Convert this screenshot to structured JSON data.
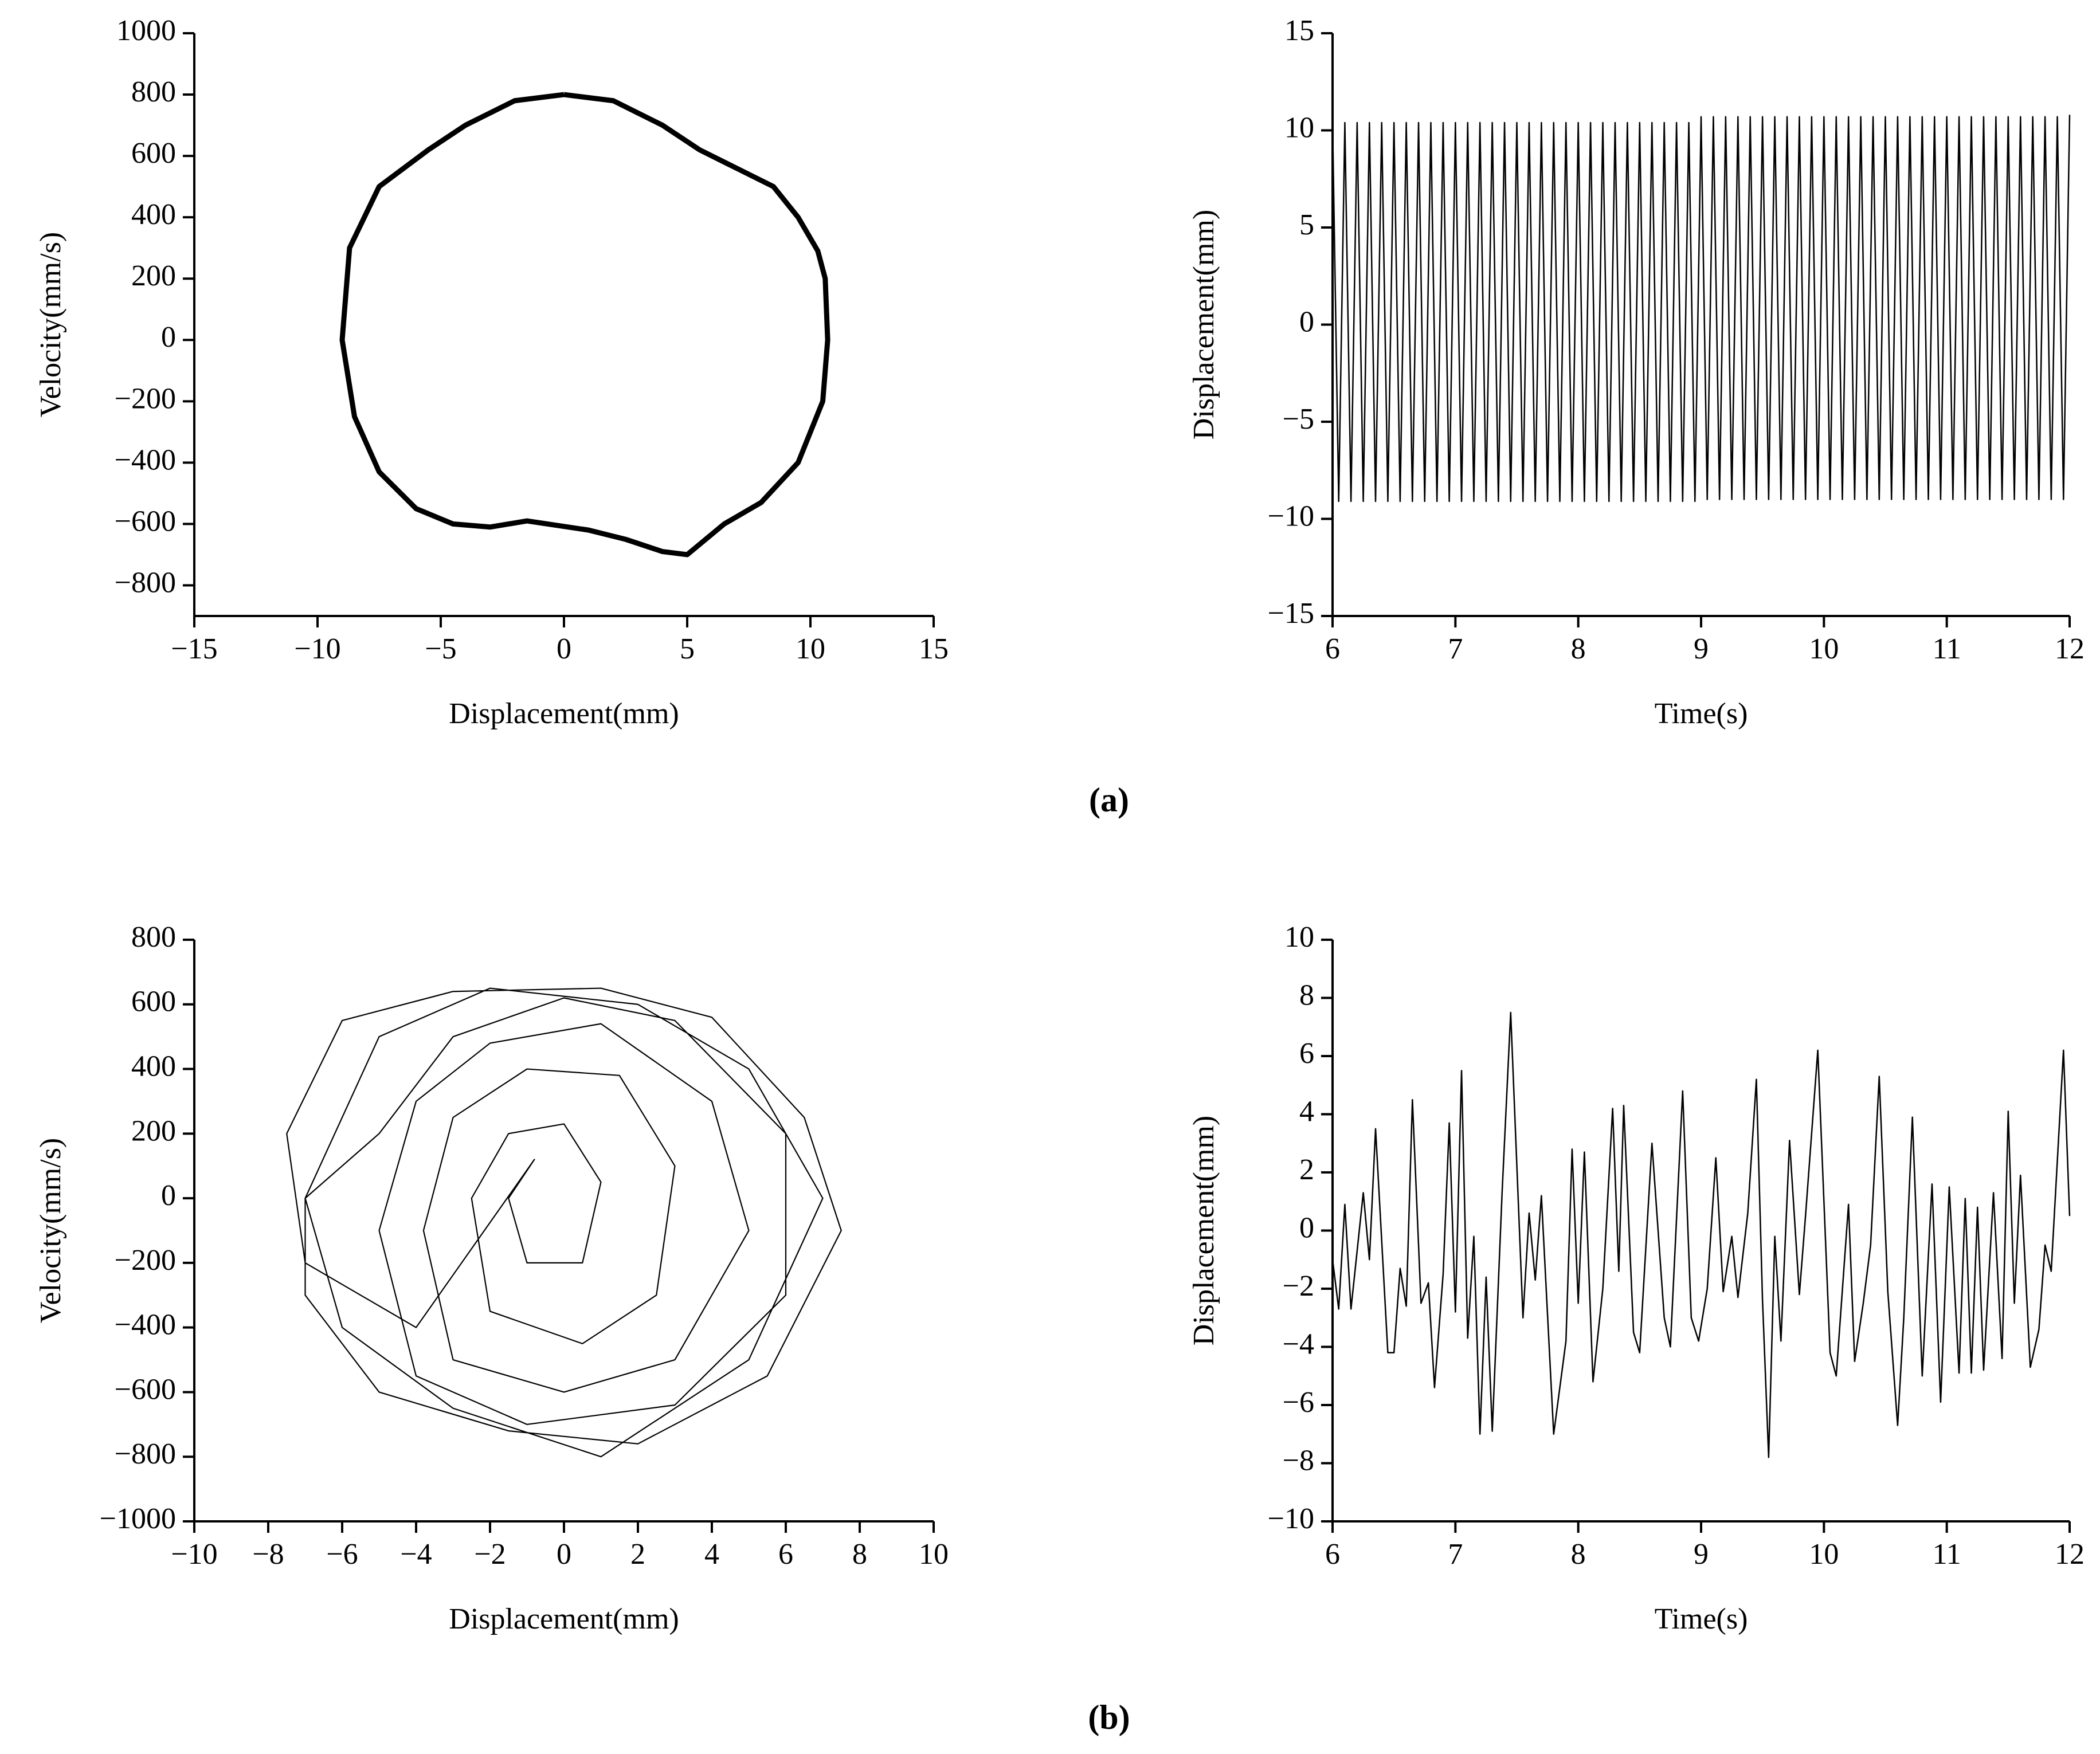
{
  "chart_data": [
    {
      "type": "line",
      "xlabel": "Displacement(mm)",
      "ylabel": "Velocity(mm/s)",
      "color": "#000000",
      "x": [
        0,
        2,
        4,
        5.5,
        7,
        8.5,
        9.5,
        10.3,
        10.6,
        10.7,
        10.5,
        9.5,
        8,
        6.5,
        5,
        4,
        2.5,
        1,
        -1.5,
        -3,
        -4.5,
        -6,
        -7.5,
        -8.5,
        -9,
        -8.7,
        -7.5,
        -5.5,
        -4,
        -2,
        0
      ],
      "values": [
        800,
        780,
        700,
        620,
        560,
        500,
        400,
        290,
        200,
        0,
        -200,
        -400,
        -530,
        -600,
        -700,
        -690,
        -650,
        -620,
        -590,
        -610,
        -600,
        -550,
        -430,
        -250,
        0,
        300,
        500,
        620,
        700,
        780,
        800
      ],
      "xlim": [
        -15,
        15
      ],
      "xticks": [
        {
          "value": -15,
          "label": "−15"
        },
        {
          "value": -10,
          "label": "−10"
        },
        {
          "value": -5,
          "label": "−5"
        },
        0,
        5,
        10,
        15
      ],
      "ylim": [
        -900,
        1000
      ],
      "yticks": [
        {
          "value": -800,
          "label": "−800"
        },
        {
          "value": -600,
          "label": "−600"
        },
        {
          "value": -400,
          "label": "−400"
        },
        {
          "value": -200,
          "label": "−200"
        },
        0,
        200,
        400,
        600,
        800,
        1000
      ]
    },
    {
      "type": "line",
      "xlabel": "Time(s)",
      "ylabel": "Displacement(mm)",
      "color": "#000000",
      "x": [
        6,
        6.05,
        6.1,
        6.15,
        6.2,
        6.25,
        6.3,
        6.35,
        6.4,
        6.45,
        6.5,
        6.55,
        6.6,
        6.65,
        6.7,
        6.75,
        6.8,
        6.85,
        6.9,
        6.95,
        7,
        7.05,
        7.1,
        7.15,
        7.2,
        7.25,
        7.3,
        7.35,
        7.4,
        7.45,
        7.5,
        7.55,
        7.6,
        7.65,
        7.7,
        7.75,
        7.8,
        7.85,
        7.9,
        7.95,
        8,
        8.05,
        8.1,
        8.15,
        8.2,
        8.25,
        8.3,
        8.35,
        8.4,
        8.45,
        8.5,
        8.55,
        8.6,
        8.65,
        8.7,
        8.75,
        8.8,
        8.85,
        8.9,
        8.95,
        9,
        9.05,
        9.1,
        9.15,
        9.2,
        9.25,
        9.3,
        9.35,
        9.4,
        9.45,
        9.5,
        9.55,
        9.6,
        9.65,
        9.7,
        9.75,
        9.8,
        9.85,
        9.9,
        9.95,
        10,
        10.05,
        10.1,
        10.15,
        10.2,
        10.25,
        10.3,
        10.35,
        10.4,
        10.45,
        10.5,
        10.55,
        10.6,
        10.65,
        10.7,
        10.75,
        10.8,
        10.85,
        10.9,
        10.95,
        11,
        11.05,
        11.1,
        11.15,
        11.2,
        11.25,
        11.3,
        11.35,
        11.4,
        11.45,
        11.5,
        11.55,
        11.6,
        11.65,
        11.7,
        11.75,
        11.8,
        11.85,
        11.9,
        11.95,
        12
      ],
      "values": [
        10.4,
        -9.1,
        10.4,
        -9.1,
        10.4,
        -9.1,
        10.4,
        -9.1,
        10.4,
        -9.1,
        10.4,
        -9.1,
        10.4,
        -9.1,
        10.4,
        -9.1,
        10.4,
        -9.1,
        10.4,
        -9.1,
        10.4,
        -9.1,
        10.4,
        -9.1,
        10.4,
        -9.1,
        10.4,
        -9.1,
        10.4,
        -9.1,
        10.4,
        -9.1,
        10.4,
        -9.1,
        10.4,
        -9.1,
        10.4,
        -9.1,
        10.4,
        -9.1,
        10.4,
        -9.1,
        10.4,
        -9.1,
        10.4,
        -9.1,
        10.4,
        -9.1,
        10.4,
        -9.1,
        10.4,
        -9.1,
        10.4,
        -9.1,
        10.4,
        -9.1,
        10.4,
        -9.1,
        10.4,
        -9.1,
        10.7,
        -9.0,
        10.7,
        -9.0,
        10.7,
        -9.0,
        10.7,
        -9.0,
        10.7,
        -9.0,
        10.7,
        -9.0,
        10.7,
        -9.0,
        10.7,
        -9.0,
        10.7,
        -9.0,
        10.7,
        -9.0,
        10.7,
        -9.0,
        10.7,
        -9.0,
        10.7,
        -9.0,
        10.7,
        -9.0,
        10.7,
        -9.0,
        10.7,
        -9.0,
        10.7,
        -9.0,
        10.7,
        -9.0,
        10.7,
        -9.0,
        10.7,
        -9.0,
        10.7,
        -9.0,
        10.7,
        -9.0,
        10.7,
        -9.0,
        10.7,
        -9.0,
        10.7,
        -9.0,
        10.7,
        -9.0,
        10.7,
        -9.0,
        10.7,
        -9.0,
        10.7,
        -9.0,
        10.7,
        -9.0,
        10.8
      ],
      "xlim": [
        6,
        12
      ],
      "xticks": [
        6,
        7,
        8,
        9,
        10,
        11,
        12
      ],
      "ylim": [
        -15,
        15
      ],
      "yticks": [
        {
          "value": -15,
          "label": "−15"
        },
        {
          "value": -10,
          "label": "−10"
        },
        {
          "value": -5,
          "label": "−5"
        },
        0,
        5,
        10,
        15
      ]
    },
    {
      "type": "line",
      "xlabel": "Displacement(mm)",
      "ylabel": "Velocity(mm/s)",
      "color": "#000000",
      "x": [
        -7,
        -5,
        -2,
        2,
        5,
        7,
        5,
        1,
        -3,
        -6,
        -7,
        -5,
        -3,
        0,
        3,
        6,
        6,
        3,
        -1,
        -4,
        -5,
        -4,
        -2,
        1,
        4,
        5,
        3,
        0,
        -3,
        -3.8,
        -3,
        -1,
        1.5,
        3,
        2.5,
        0.5,
        -2,
        -2.5,
        -1.5,
        0,
        1,
        0.5,
        -1,
        -1.5,
        -0.8,
        -4,
        -7,
        -7.5,
        -6,
        -3,
        1,
        4,
        6.5,
        7.5,
        5.5,
        2,
        -1.5,
        -5,
        -7,
        -7
      ],
      "values": [
        0,
        500,
        650,
        600,
        400,
        0,
        -500,
        -800,
        -650,
        -400,
        0,
        200,
        500,
        620,
        550,
        200,
        -300,
        -640,
        -700,
        -550,
        -100,
        300,
        480,
        540,
        300,
        -100,
        -500,
        -600,
        -500,
        -100,
        250,
        400,
        380,
        100,
        -300,
        -450,
        -350,
        0,
        200,
        230,
        50,
        -200,
        -200,
        0,
        120,
        -400,
        -200,
        200,
        550,
        640,
        650,
        560,
        250,
        -100,
        -550,
        -760,
        -720,
        -600,
        -300,
        0
      ],
      "xlim": [
        -10,
        10
      ],
      "xticks": [
        {
          "value": -10,
          "label": "−10"
        },
        {
          "value": -8,
          "label": "−8"
        },
        {
          "value": -6,
          "label": "−6"
        },
        {
          "value": -4,
          "label": "−4"
        },
        {
          "value": -2,
          "label": "−2"
        },
        0,
        2,
        4,
        6,
        8,
        10
      ],
      "ylim": [
        -1000,
        800
      ],
      "yticks": [
        {
          "value": -1000,
          "label": "−1000"
        },
        {
          "value": -800,
          "label": "−800"
        },
        {
          "value": -600,
          "label": "−600"
        },
        {
          "value": -400,
          "label": "−400"
        },
        {
          "value": -200,
          "label": "−200"
        },
        0,
        200,
        400,
        600,
        800
      ]
    },
    {
      "type": "line",
      "xlabel": "Time(s)",
      "ylabel": "Displacement(mm)",
      "color": "#000000",
      "x": [
        6,
        6.05,
        6.1,
        6.15,
        6.25,
        6.3,
        6.35,
        6.45,
        6.5,
        6.55,
        6.6,
        6.65,
        6.72,
        6.78,
        6.83,
        6.9,
        6.95,
        7,
        7.05,
        7.1,
        7.15,
        7.2,
        7.25,
        7.3,
        7.38,
        7.45,
        7.55,
        7.6,
        7.65,
        7.7,
        7.8,
        7.9,
        7.95,
        8,
        8.05,
        8.12,
        8.2,
        8.28,
        8.33,
        8.37,
        8.45,
        8.5,
        8.6,
        8.7,
        8.75,
        8.85,
        8.92,
        8.98,
        9.05,
        9.12,
        9.18,
        9.25,
        9.3,
        9.38,
        9.45,
        9.5,
        9.55,
        9.6,
        9.65,
        9.72,
        9.8,
        9.85,
        9.95,
        10.05,
        10.1,
        10.2,
        10.25,
        10.32,
        10.38,
        10.45,
        10.52,
        10.6,
        10.65,
        10.72,
        10.8,
        10.88,
        10.95,
        11.02,
        11.1,
        11.15,
        11.2,
        11.25,
        11.3,
        11.38,
        11.45,
        11.5,
        11.55,
        11.6,
        11.68,
        11.75,
        11.8,
        11.85,
        11.95,
        12
      ],
      "values": [
        -1,
        -2.7,
        0.9,
        -2.7,
        1.3,
        -1,
        3.5,
        -4.2,
        -4.2,
        -1.3,
        -2.6,
        4.5,
        -2.5,
        -1.8,
        -5.4,
        -1.5,
        3.7,
        -2.8,
        5.5,
        -3.7,
        -0.2,
        -7,
        -1.6,
        -6.9,
        1.3,
        7.5,
        -3,
        0.6,
        -1.7,
        1.2,
        -7,
        -3.8,
        2.8,
        -2.5,
        2.7,
        -5.2,
        -2,
        4.2,
        -1.4,
        4.3,
        -3.5,
        -4.2,
        3,
        -3,
        -4,
        4.8,
        -3,
        -3.8,
        -2,
        2.5,
        -2.1,
        -0.2,
        -2.3,
        0.6,
        5.2,
        -2.4,
        -7.8,
        -0.2,
        -3.8,
        3.1,
        -2.2,
        0.5,
        6.2,
        -4.2,
        -5,
        0.9,
        -4.5,
        -2.5,
        -0.5,
        5.3,
        -2.1,
        -6.7,
        -3,
        3.9,
        -5,
        1.6,
        -5.9,
        1.5,
        -4.9,
        1.1,
        -4.9,
        0.8,
        -4.8,
        1.3,
        -4.4,
        4.1,
        -2.5,
        1.9,
        -4.7,
        -3.4,
        -0.5,
        -1.4,
        6.2,
        0.5
      ],
      "xlim": [
        6,
        12
      ],
      "xticks": [
        6,
        7,
        8,
        9,
        10,
        11,
        12
      ],
      "ylim": [
        -10,
        10
      ],
      "yticks": [
        {
          "value": -10,
          "label": "−10"
        },
        {
          "value": -8,
          "label": "−8"
        },
        {
          "value": -6,
          "label": "−6"
        },
        {
          "value": -4,
          "label": "−4"
        },
        {
          "value": -2,
          "label": "−2"
        },
        0,
        2,
        4,
        6,
        8,
        10
      ]
    }
  ],
  "figure_labels": [
    "(a)",
    "(b)"
  ]
}
